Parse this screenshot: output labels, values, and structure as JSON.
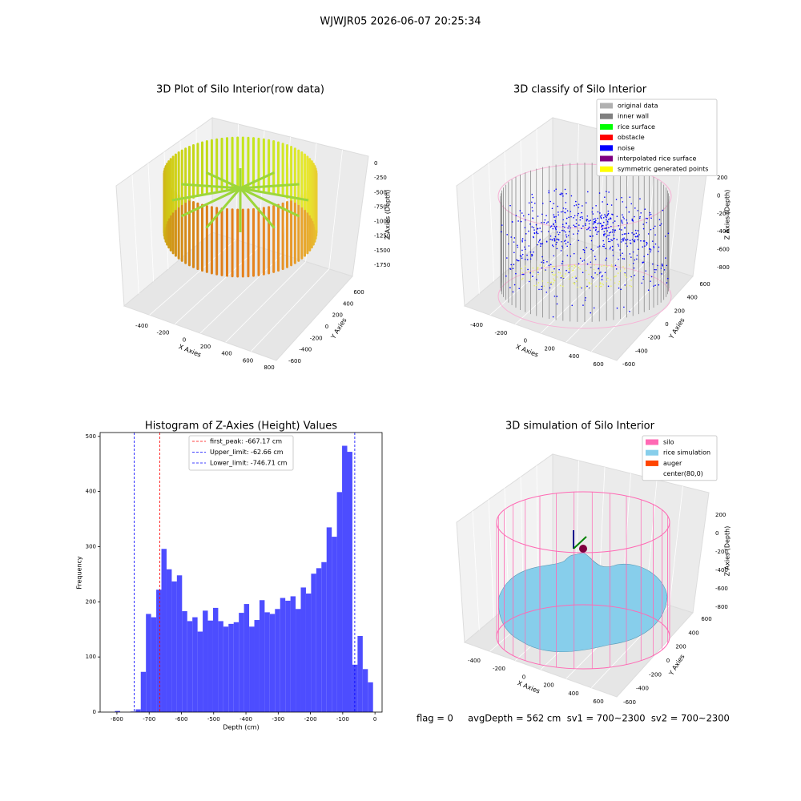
{
  "suptitle": "WJWJR05 2026-06-07 20:25:34",
  "footer": "flag = 0     avgDepth = 562 cm  sv1 = 700~2300  sv2 = 700~2300",
  "chart_data": [
    {
      "type": "scatter3d",
      "title": "3D Plot of Silo Interior(row data)",
      "xlabel": "X Axies",
      "ylabel": "Y Axies",
      "zlabel": "Z Axies (Depth)",
      "xticks": [
        -400,
        -200,
        0,
        200,
        400,
        600,
        800
      ],
      "yticks": [
        -600,
        -400,
        -200,
        0,
        200,
        400,
        600
      ],
      "zticks": [
        0,
        -250,
        -500,
        -750,
        -1000,
        -1250,
        -1500,
        -1750
      ]
    },
    {
      "type": "scatter3d",
      "title": "3D classify of Silo Interior",
      "xlabel": "X Axies",
      "ylabel": "Y Axies",
      "zlabel": "Z Axies (Depth)",
      "xticks": [
        -400,
        -200,
        0,
        200,
        400,
        600
      ],
      "yticks": [
        -600,
        -400,
        -200,
        0,
        200,
        400,
        600
      ],
      "zticks": [
        200,
        0,
        -200,
        -400,
        -600,
        -800
      ],
      "legend": [
        {
          "name": "original data",
          "color": "#b0b0b0"
        },
        {
          "name": "inner wall",
          "color": "#808080"
        },
        {
          "name": "rice surface",
          "color": "#00ff00"
        },
        {
          "name": "obstacle",
          "color": "#ff0000"
        },
        {
          "name": "noise",
          "color": "#0000ff"
        },
        {
          "name": "interpolated rice surface",
          "color": "#800080"
        },
        {
          "name": "symmetric generated points",
          "color": "#ffff00"
        }
      ]
    },
    {
      "type": "histogram",
      "title": "Histogram of Z-Axies (Height) Values",
      "xlabel": "Depth (cm)",
      "ylabel": "Frequency",
      "color": "#4d4dff",
      "bins": [
        -806,
        -790,
        -774,
        -758,
        -742,
        -726,
        -710,
        -694,
        -678,
        -662,
        -646,
        -630,
        -614,
        -598,
        -582,
        -566,
        -550,
        -534,
        -518,
        -502,
        -486,
        -470,
        -454,
        -438,
        -422,
        -406,
        -390,
        -374,
        -358,
        -342,
        -326,
        -310,
        -294,
        -278,
        -262,
        -246,
        -230,
        -214,
        -198,
        -182,
        -166,
        -150,
        -134,
        -118,
        -102,
        -86,
        -70,
        -54,
        -38,
        -22,
        -6
      ],
      "values": [
        2,
        0,
        0,
        1,
        5,
        73,
        178,
        172,
        222,
        296,
        259,
        237,
        248,
        183,
        165,
        172,
        146,
        184,
        166,
        189,
        165,
        155,
        160,
        163,
        180,
        196,
        155,
        167,
        203,
        181,
        178,
        187,
        207,
        202,
        210,
        187,
        226,
        215,
        251,
        261,
        272,
        335,
        318,
        399,
        483,
        472,
        86,
        138,
        78,
        54
      ],
      "xlim": [
        -852,
        22
      ],
      "ylim": [
        0,
        507
      ],
      "xticks": [
        -800,
        -700,
        -600,
        -500,
        -400,
        -300,
        -200,
        -100,
        0
      ],
      "yticks": [
        0,
        100,
        200,
        300,
        400,
        500
      ],
      "lines": [
        {
          "label": "first_peak: -667.17 cm",
          "value": -667.17,
          "color": "#ff0000"
        },
        {
          "label": "Upper_limit: -62.66 cm",
          "value": -62.66,
          "color": "#0000ff"
        },
        {
          "label": "Lower_limit: -746.71 cm",
          "value": -746.71,
          "color": "#0000ff"
        }
      ]
    },
    {
      "type": "surface3d",
      "title": "3D simulation of Silo Interior",
      "xlabel": "X Axies",
      "ylabel": "Y Axies",
      "zlabel": "Z Axies (Depth)",
      "xticks": [
        -400,
        -200,
        0,
        200,
        400,
        600
      ],
      "yticks": [
        -600,
        -400,
        -200,
        0,
        200,
        400,
        600
      ],
      "zticks": [
        200,
        0,
        -200,
        -400,
        -600,
        -800
      ],
      "legend": [
        {
          "name": "silo",
          "color": "#ff69b4"
        },
        {
          "name": "rice simulation",
          "color": "#87ceeb"
        },
        {
          "name": "auger",
          "color": "#ff4500"
        },
        {
          "name": "center(80,0)",
          "color": "#ffffff"
        }
      ]
    }
  ]
}
